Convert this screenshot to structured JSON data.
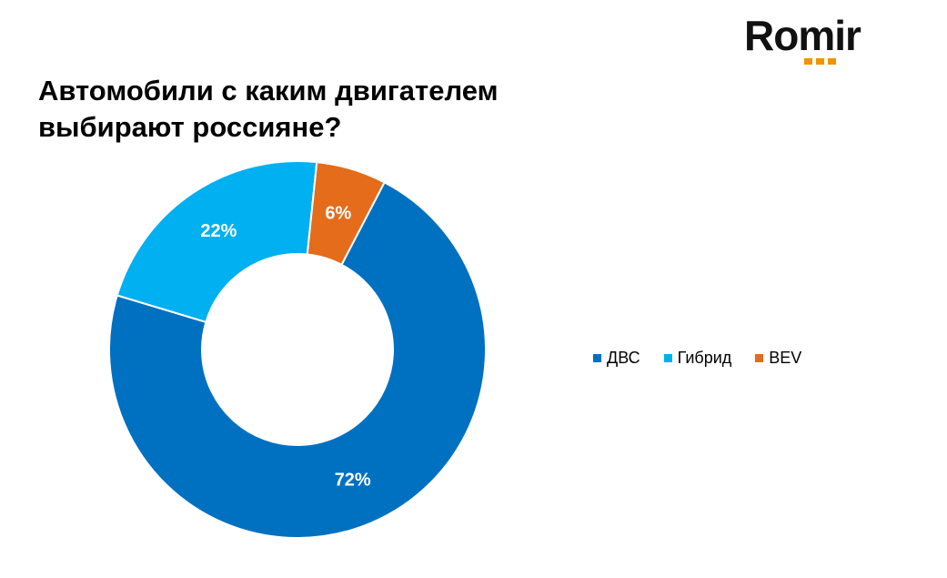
{
  "title_lines": [
    "Автомобили с каким двигателем",
    "выбирают россияне?"
  ],
  "logo": {
    "text": "Romir",
    "accent_color": "#f39200"
  },
  "chart_data": {
    "type": "pie",
    "variant": "donut",
    "title": "Автомобили с каким двигателем выбирают россияне?",
    "categories": [
      "ДВС",
      "Гибрид",
      "BEV"
    ],
    "values": [
      72,
      22,
      6
    ],
    "labels": [
      "72%",
      "22%",
      "6%"
    ],
    "colors": [
      "#0070c0",
      "#00b0f0",
      "#e46c1a"
    ],
    "legend_position": "right"
  }
}
